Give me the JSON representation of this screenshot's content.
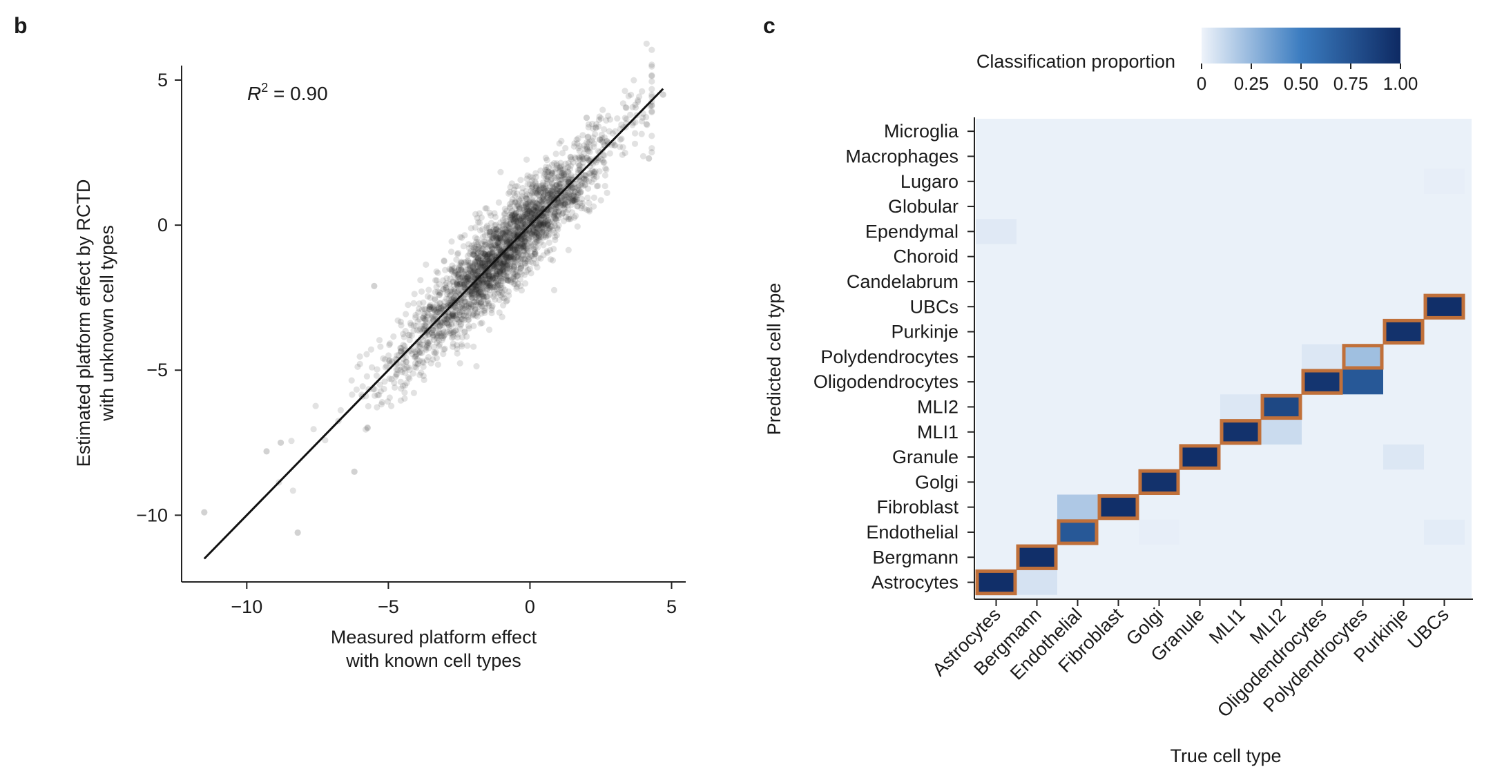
{
  "panels": {
    "b": {
      "label": "b",
      "chart_data": {
        "type": "scatter",
        "xlabel": [
          "Measured platform effect",
          "with known cell types"
        ],
        "ylabel": [
          "Estimated platform effect by RCTD",
          "with unknown cell types"
        ],
        "annotation": {
          "text_R": "R",
          "text_sup": "2",
          "text_rest": " = 0.90",
          "r2": 0.9
        },
        "xlim": [
          -12.3,
          5.5
        ],
        "ylim": [
          -12.3,
          5.5
        ],
        "xticks": [
          -10,
          -5,
          0,
          5
        ],
        "yticks": [
          -10,
          -5,
          0,
          5
        ],
        "xticklabels": [
          "−10",
          "−5",
          "0",
          "5"
        ],
        "yticklabels": [
          "−10",
          "−5",
          "0",
          "5"
        ],
        "fit_line": {
          "x": [
            -11.5,
            4.7
          ],
          "y": [
            -11.5,
            4.7
          ]
        },
        "point_color": "#1f1f1f",
        "n_points_approx": 2600,
        "trend": "points scattered around identity line, densest near (-1,-1)",
        "outliers": [
          {
            "x": -11.5,
            "y": -9.9
          },
          {
            "x": -8.2,
            "y": -10.6
          },
          {
            "x": -6.2,
            "y": -8.5
          },
          {
            "x": -9.3,
            "y": -7.8
          },
          {
            "x": -8.8,
            "y": -7.5
          },
          {
            "x": 4.7,
            "y": 4.5
          },
          {
            "x": 4.2,
            "y": 2.3
          },
          {
            "x": 2.0,
            "y": 3.7
          },
          {
            "x": -5.5,
            "y": -2.1
          }
        ]
      }
    },
    "c": {
      "label": "c",
      "colorbar": {
        "title": "Classification proportion",
        "ticks": [
          0,
          0.25,
          0.5,
          0.75,
          1.0
        ],
        "ticklabels": [
          "0",
          "0.25",
          "0.50",
          "0.75",
          "1.00"
        ],
        "color_low": "#eef3fa",
        "color_mid": "#3b7cc0",
        "color_high": "#0e2a63"
      },
      "chart_data": {
        "type": "heatmap",
        "xlabel": "True cell type",
        "ylabel": "Predicted cell type",
        "x_categories": [
          "Astrocytes",
          "Bergmann",
          "Endothelial",
          "Fibroblast",
          "Golgi",
          "Granule",
          "MLI1",
          "MLI2",
          "Oligodendrocytes",
          "Polydendrocytes",
          "Purkinje",
          "UBCs"
        ],
        "y_categories": [
          "Microglia",
          "Macrophages",
          "Lugaro",
          "Globular",
          "Ependymal",
          "Choroid",
          "Candelabrum",
          "UBCs",
          "Purkinje",
          "Polydendrocytes",
          "Oligodendrocytes",
          "MLI2",
          "MLI1",
          "Granule",
          "Golgi",
          "Fibroblast",
          "Endothelial",
          "Bergmann",
          "Astrocytes"
        ],
        "highlight_color": "#c0703a",
        "highlighted_cells": [
          {
            "true": "Astrocytes",
            "predicted": "Astrocytes"
          },
          {
            "true": "Bergmann",
            "predicted": "Bergmann"
          },
          {
            "true": "Endothelial",
            "predicted": "Endothelial"
          },
          {
            "true": "Fibroblast",
            "predicted": "Fibroblast"
          },
          {
            "true": "Golgi",
            "predicted": "Golgi"
          },
          {
            "true": "Granule",
            "predicted": "Granule"
          },
          {
            "true": "MLI1",
            "predicted": "MLI1"
          },
          {
            "true": "MLI2",
            "predicted": "MLI2"
          },
          {
            "true": "Oligodendrocytes",
            "predicted": "Oligodendrocytes"
          },
          {
            "true": "Polydendrocytes",
            "predicted": "Polydendrocytes"
          },
          {
            "true": "Purkinje",
            "predicted": "Purkinje"
          },
          {
            "true": "UBCs",
            "predicted": "UBCs"
          }
        ],
        "values": [
          {
            "true": "Astrocytes",
            "predicted": "Astrocytes",
            "value": 0.97
          },
          {
            "true": "Bergmann",
            "predicted": "Bergmann",
            "value": 0.97
          },
          {
            "true": "Endothelial",
            "predicted": "Endothelial",
            "value": 0.72
          },
          {
            "true": "Fibroblast",
            "predicted": "Fibroblast",
            "value": 0.97
          },
          {
            "true": "Golgi",
            "predicted": "Golgi",
            "value": 0.95
          },
          {
            "true": "Granule",
            "predicted": "Granule",
            "value": 0.97
          },
          {
            "true": "MLI1",
            "predicted": "MLI1",
            "value": 0.95
          },
          {
            "true": "MLI2",
            "predicted": "MLI2",
            "value": 0.82
          },
          {
            "true": "Oligodendrocytes",
            "predicted": "Oligodendrocytes",
            "value": 0.93
          },
          {
            "true": "Polydendrocytes",
            "predicted": "Polydendrocytes",
            "value": 0.22
          },
          {
            "true": "Polydendrocytes",
            "predicted": "Oligodendrocytes",
            "value": 0.72
          },
          {
            "true": "Purkinje",
            "predicted": "Purkinje",
            "value": 0.95
          },
          {
            "true": "UBCs",
            "predicted": "UBCs",
            "value": 0.97
          },
          {
            "true": "Endothelial",
            "predicted": "Fibroblast",
            "value": 0.18
          },
          {
            "true": "Bergmann",
            "predicted": "Astrocytes",
            "value": 0.07
          },
          {
            "true": "MLI1",
            "predicted": "MLI2",
            "value": 0.05
          },
          {
            "true": "MLI2",
            "predicted": "MLI1",
            "value": 0.1
          },
          {
            "true": "Oligodendrocytes",
            "predicted": "Polydendrocytes",
            "value": 0.05
          },
          {
            "true": "Astrocytes",
            "predicted": "Ependymal",
            "value": 0.04
          },
          {
            "true": "Purkinje",
            "predicted": "Granule",
            "value": 0.05
          },
          {
            "true": "UBCs",
            "predicted": "Endothelial",
            "value": 0.03
          },
          {
            "true": "Golgi",
            "predicted": "Endothelial",
            "value": 0.02
          },
          {
            "true": "UBCs",
            "predicted": "Lugaro",
            "value": 0.02
          }
        ],
        "background_value": 0.0
      }
    }
  }
}
